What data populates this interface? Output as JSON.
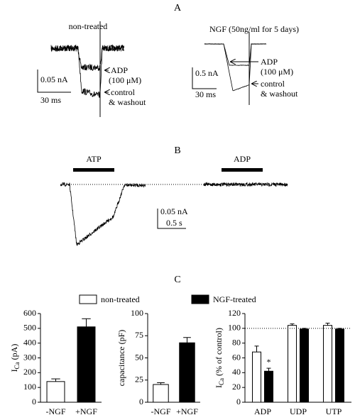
{
  "panel_a": {
    "label": "A",
    "left": {
      "title": "non-treated",
      "adp_label": [
        "ADP",
        "(100 μM)"
      ],
      "control_label": [
        "control",
        "& washout"
      ],
      "scale_y": "0.05 nA",
      "scale_x": "30 ms"
    },
    "right": {
      "title": "NGF (50ng/ml for 5 days)",
      "adp_label": [
        "ADP",
        "(100 μM)"
      ],
      "control_label": [
        "control",
        "& washout"
      ],
      "scale_y": "0.5 nA",
      "scale_x": "30 ms"
    }
  },
  "panel_b": {
    "label": "B",
    "drugs": [
      "ATP",
      "ADP"
    ],
    "scale_y": "0.05 nA",
    "scale_x": "0.5 s"
  },
  "panel_c": {
    "label": "C"
  },
  "chart_data": [
    {
      "type": "bar",
      "ylabel": [
        "I",
        "Ca",
        "(pA)"
      ],
      "categories": [
        "-NGF",
        "+NGF"
      ],
      "values": [
        140,
        510
      ],
      "errors": [
        18,
        55
      ],
      "colors": [
        "#ffffff",
        "#000000"
      ],
      "ylim": [
        0,
        600
      ],
      "yticks": [
        0,
        100,
        200,
        300,
        400,
        500,
        600
      ]
    },
    {
      "type": "bar",
      "ylabel": [
        "capacitance (pF)"
      ],
      "categories": [
        "-NGF",
        "+NGF"
      ],
      "values": [
        20,
        67
      ],
      "errors": [
        2,
        6
      ],
      "colors": [
        "#ffffff",
        "#000000"
      ],
      "ylim": [
        0,
        100
      ],
      "yticks": [
        0,
        25,
        50,
        75,
        100
      ]
    },
    {
      "type": "grouped_bar",
      "ylabel": [
        "I",
        "Ca",
        "(% of control)"
      ],
      "categories": [
        "ADP",
        "UDP",
        "UTP"
      ],
      "series": [
        {
          "name": "non-treated",
          "color": "#ffffff",
          "values": [
            68,
            104,
            104
          ],
          "errors": [
            8,
            2,
            3
          ]
        },
        {
          "name": "NGF-treated",
          "color": "#000000",
          "values": [
            42,
            99,
            99
          ],
          "errors": [
            4,
            1,
            1
          ]
        }
      ],
      "significance_marker": "*",
      "reference_line": 100,
      "ylim": [
        0,
        120
      ],
      "yticks": [
        0,
        20,
        40,
        60,
        80,
        100,
        120
      ]
    }
  ]
}
